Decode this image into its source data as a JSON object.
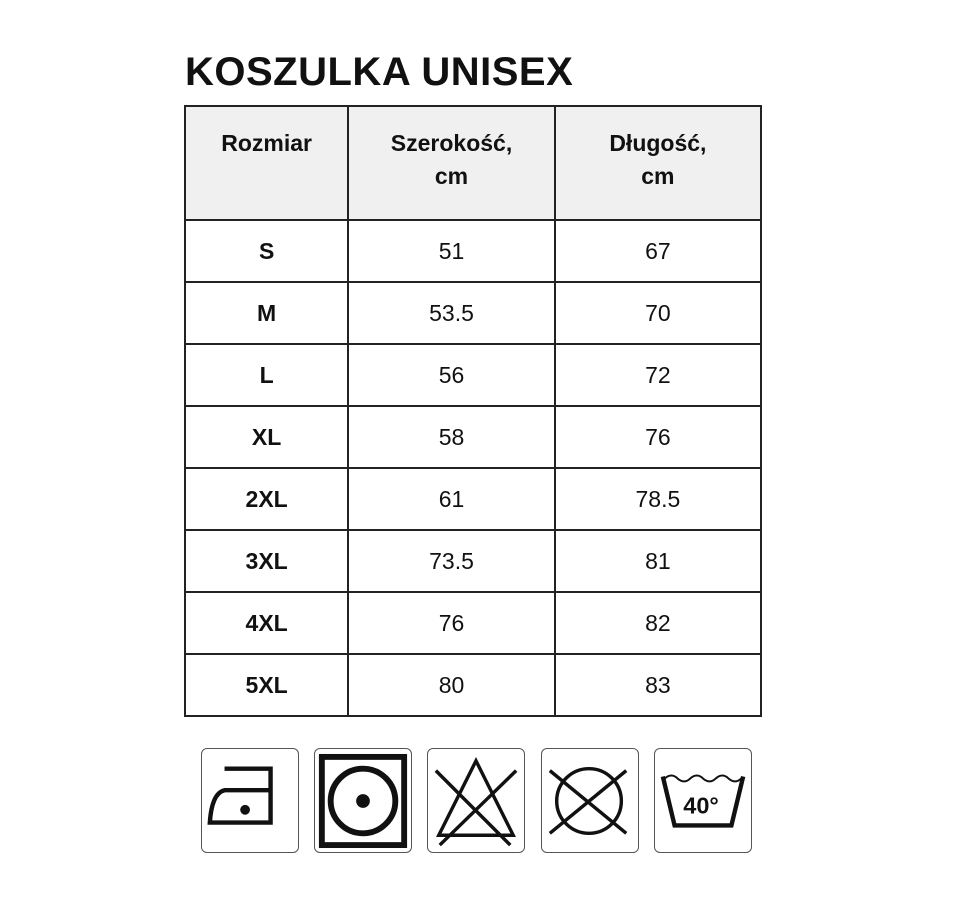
{
  "title": "KOSZULKA UNISEX",
  "table": {
    "headers": [
      "Rozmiar",
      "Szerokość, cm",
      "Długość, cm"
    ],
    "rows": [
      [
        "S",
        "51",
        "67"
      ],
      [
        "M",
        "53.5",
        "70"
      ],
      [
        "L",
        "56",
        "72"
      ],
      [
        "XL",
        "58",
        "76"
      ],
      [
        "2XL",
        "61",
        "78.5"
      ],
      [
        "3XL",
        "73.5",
        "81"
      ],
      [
        "4XL",
        "76",
        "82"
      ],
      [
        "5XL",
        "80",
        "83"
      ]
    ]
  },
  "care_icons": [
    {
      "name": "iron-low-temp-icon"
    },
    {
      "name": "tumble-dry-icon"
    },
    {
      "name": "no-bleach-icon"
    },
    {
      "name": "no-dry-clean-icon"
    },
    {
      "name": "wash-40-icon",
      "label": "40°"
    }
  ]
}
